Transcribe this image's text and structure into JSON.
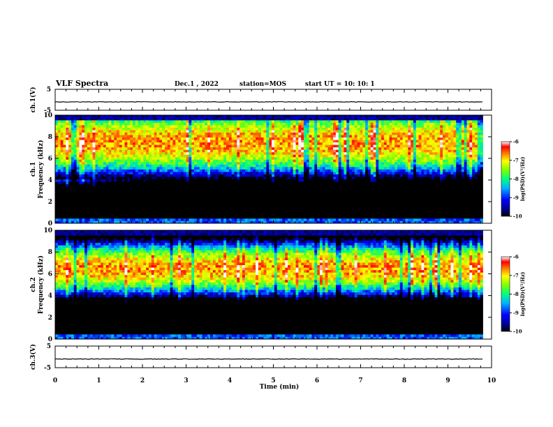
{
  "header": {
    "title": "VLF Spectra",
    "date": "Dec.1 , 2022",
    "station": "station=MOS",
    "start": "start UT = 10: 10: 1"
  },
  "chart_data": [
    {
      "type": "line",
      "name": "ch1-voltage",
      "ylabel": "ch.1(V)",
      "ylim": [
        -5,
        5
      ],
      "yticks": [
        "5",
        "-5"
      ],
      "xlim": [
        0,
        10
      ],
      "level": -1
    },
    {
      "type": "heatmap",
      "name": "ch1-spectrogram",
      "ylabel": "ch.1\nFrequency (kHz)",
      "ylabel_lines": [
        "ch.1",
        "Frequency (kHz)"
      ],
      "ylim": [
        0,
        10
      ],
      "yticks": [
        "0",
        "2",
        "4",
        "6",
        "8",
        "10"
      ],
      "xlim": [
        0,
        10
      ],
      "data_end_min": 9.8,
      "colorbar": {
        "label": "log(PSD)(V²/Hz)",
        "range": [
          -10,
          -6
        ],
        "ticks": [
          "-6",
          "-7",
          "-8",
          "-9",
          "-10"
        ]
      },
      "band_peak_khz": [
        6,
        9
      ]
    },
    {
      "type": "heatmap",
      "name": "ch2-spectrogram",
      "ylabel": "ch.2\nFrequency (kHz)",
      "ylabel_lines": [
        "ch.2",
        "Frequency (kHz)"
      ],
      "ylim": [
        0,
        10
      ],
      "yticks": [
        "0",
        "2",
        "4",
        "6",
        "8",
        "10"
      ],
      "xlim": [
        0,
        10
      ],
      "data_end_min": 9.8,
      "colorbar": {
        "label": "log(PSD)(V²/Hz)",
        "range": [
          -10,
          -6
        ],
        "ticks": [
          "-6",
          "-7",
          "-8",
          "-9",
          "-10"
        ]
      },
      "band_peak_khz": [
        5.5,
        7.5
      ]
    },
    {
      "type": "line",
      "name": "ch3-voltage",
      "ylabel": "ch.3(V)",
      "ylim": [
        -5,
        5
      ],
      "yticks": [
        "5",
        "-5"
      ],
      "xlim": [
        0,
        10
      ],
      "level": -1
    }
  ],
  "xaxis": {
    "label": "Time (min)",
    "ticks": [
      "0",
      "1",
      "2",
      "3",
      "4",
      "5",
      "6",
      "7",
      "8",
      "9",
      "10"
    ]
  }
}
